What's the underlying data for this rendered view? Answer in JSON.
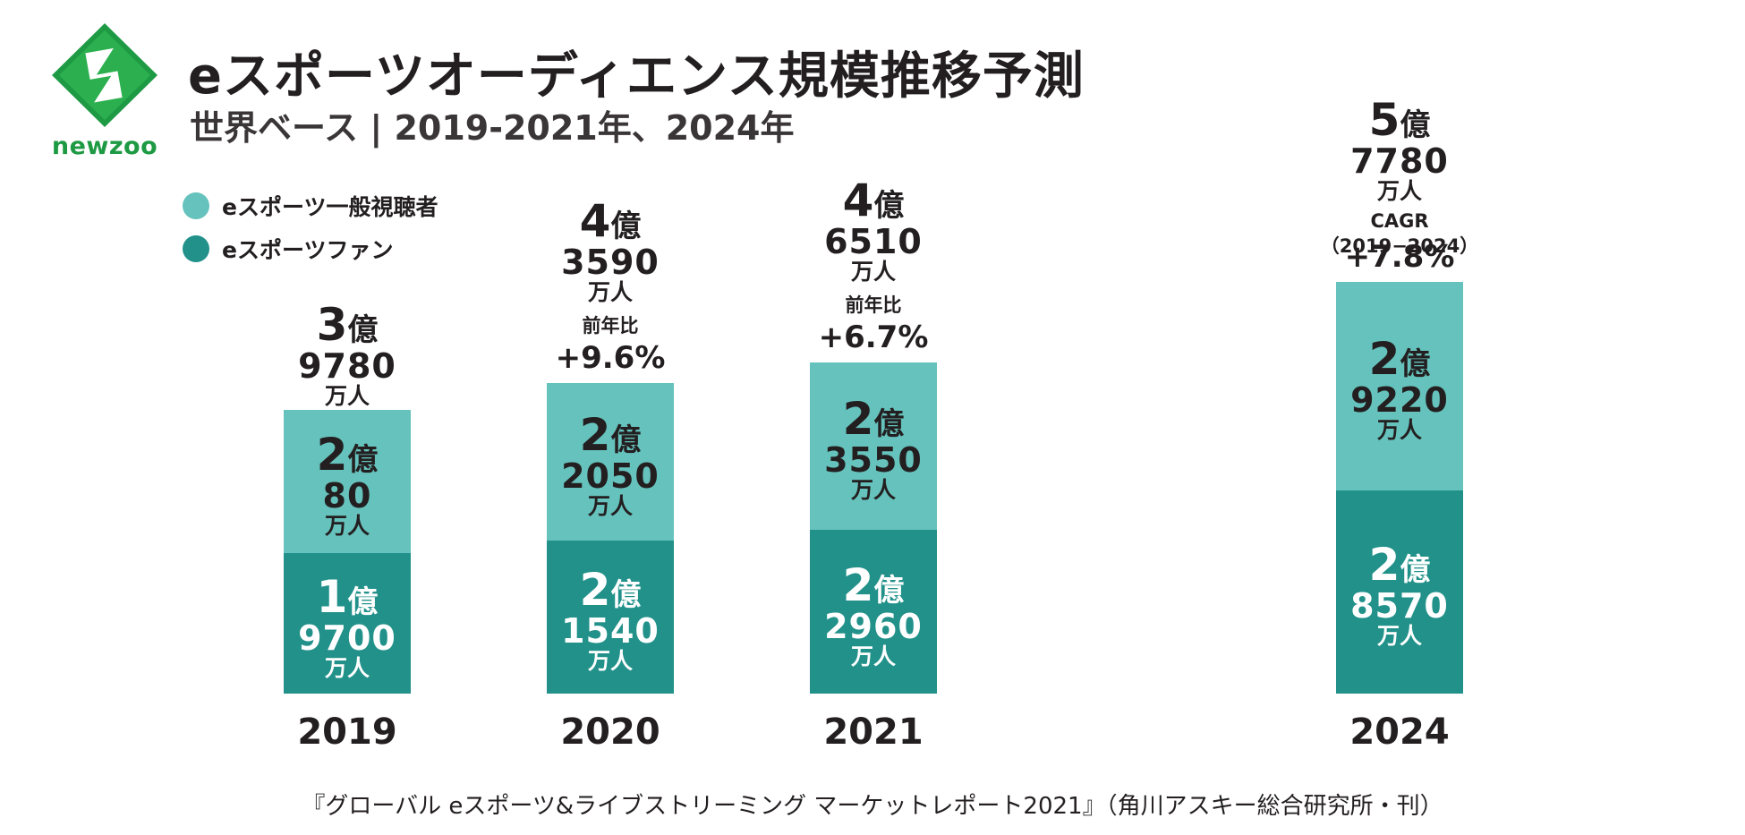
{
  "brand": {
    "name": "newzoo",
    "icon": "newzoo-logo-icon"
  },
  "header": {
    "title": "eスポーツオーディエンス規模推移予測",
    "subtitle": "世界ベース | 2019-2021年、2024年"
  },
  "legend": [
    {
      "label": "eスポーツ一般視聴者",
      "color": "#66c2bc"
    },
    {
      "label": "eスポーツファン",
      "color": "#21918a"
    }
  ],
  "chart_data": {
    "type": "bar",
    "stacked": true,
    "title": "eスポーツオーディエンス規模推移予測",
    "unit": "万人",
    "categories": [
      "2019",
      "2020",
      "2021",
      "2024"
    ],
    "series": [
      {
        "name": "eスポーツファン",
        "values": [
          19700,
          21540,
          22960,
          28570
        ]
      },
      {
        "name": "eスポーツ一般視聴者",
        "values": [
          20080,
          22050,
          23550,
          29220
        ]
      }
    ],
    "totals": [
      39780,
      43590,
      46510,
      57780
    ],
    "ylim": [
      0,
      60000
    ],
    "labels": {
      "fans": [
        {
          "oku": "1",
          "man": "9700",
          "unit": "万人"
        },
        {
          "oku": "2",
          "man": "1540",
          "unit": "万人"
        },
        {
          "oku": "2",
          "man": "2960",
          "unit": "万人"
        },
        {
          "oku": "2",
          "man": "8570",
          "unit": "万人"
        }
      ],
      "viewers": [
        {
          "oku": "2",
          "man": "80",
          "unit": "万人"
        },
        {
          "oku": "2",
          "man": "2050",
          "unit": "万人"
        },
        {
          "oku": "2",
          "man": "3550",
          "unit": "万人"
        },
        {
          "oku": "2",
          "man": "9220",
          "unit": "万人"
        }
      ],
      "totals": [
        {
          "oku": "3",
          "man": "9780",
          "unit": "万人"
        },
        {
          "oku": "4",
          "man": "3590",
          "unit": "万人"
        },
        {
          "oku": "4",
          "man": "6510",
          "unit": "万人"
        },
        {
          "oku": "5",
          "man": "7780",
          "unit": "万人"
        }
      ],
      "oku_char": "億"
    },
    "growth": [
      null,
      {
        "label": "前年比",
        "value": "+9.6%"
      },
      {
        "label": "前年比",
        "value": "+6.7%"
      },
      {
        "label": "CAGR（2019−2024）",
        "value": "+7.8%"
      }
    ]
  },
  "footer": {
    "source": "『グローバル eスポーツ&ライブストリーミング マーケットレポート2021』（角川アスキー総合研究所・刊）"
  }
}
